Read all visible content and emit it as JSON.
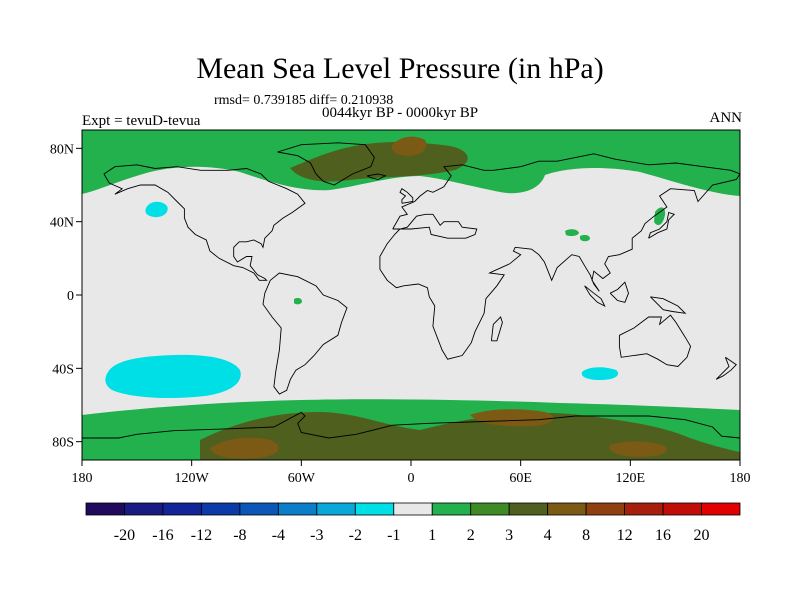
{
  "header": {
    "title": "Mean Sea Level Pressure (in hPa)",
    "stats": "rmsd= 0.739185 diff= 0.210938",
    "expt": "Expt = tevuD-tevua",
    "period": "0044kyr BP - 0000kyr BP",
    "season": "ANN"
  },
  "map": {
    "lon_range": [
      -180,
      180
    ],
    "lat_range": [
      -90,
      90
    ],
    "x_ticks": [
      {
        "value": -180,
        "label": "180"
      },
      {
        "value": -120,
        "label": "120W"
      },
      {
        "value": -60,
        "label": "60W"
      },
      {
        "value": 0,
        "label": "0"
      },
      {
        "value": 60,
        "label": "60E"
      },
      {
        "value": 120,
        "label": "120E"
      },
      {
        "value": 180,
        "label": "180"
      }
    ],
    "y_ticks": [
      {
        "value": 80,
        "label": "80N"
      },
      {
        "value": 40,
        "label": "40N"
      },
      {
        "value": 0,
        "label": "0"
      },
      {
        "value": -40,
        "label": "40S"
      },
      {
        "value": -80,
        "label": "80S"
      }
    ],
    "colors": {
      "background": "#e8e8e8",
      "minus_2_to_minus_1": "#00dfe6",
      "one_to_two": "#22b14c",
      "three_to_four": "#4f5f1e",
      "four_to_eight": "#7a5a14",
      "coast": "#000000"
    }
  },
  "colorbar": {
    "labels": [
      "-20",
      "-16",
      "-12",
      "-8",
      "-4",
      "-3",
      "-2",
      "-1",
      "1",
      "2",
      "3",
      "4",
      "8",
      "12",
      "16",
      "20"
    ],
    "colors": [
      "#21095e",
      "#1a1a84",
      "#13239a",
      "#0c3aa8",
      "#0a57b8",
      "#0a7ec8",
      "#0aa8d8",
      "#00dfe6",
      "#e8e8e8",
      "#22b14c",
      "#3d8a26",
      "#4f5f1e",
      "#7a5a14",
      "#8f3f10",
      "#a81e0c",
      "#c00d08",
      "#e00000"
    ]
  }
}
